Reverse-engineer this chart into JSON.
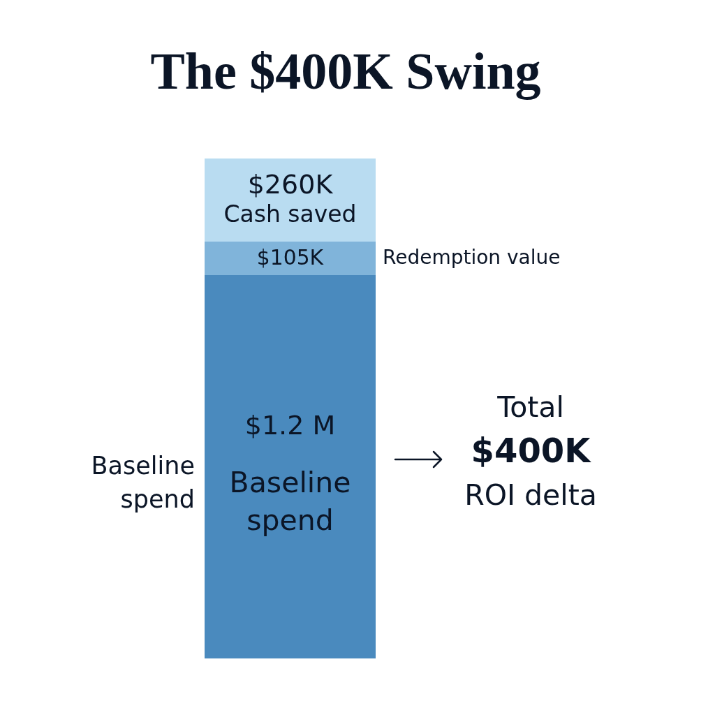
{
  "chart_data": {
    "type": "bar",
    "title": "The $400K Swing",
    "categories": [
      null
    ],
    "stacked": true,
    "tick_labels": false,
    "legend": false,
    "series": [
      {
        "name": "Baseline spend",
        "color": "#4a8abe",
        "values": [
          1200000
        ],
        "value_labels": [
          "$1.2 M"
        ]
      },
      {
        "name": "Redemption value",
        "color": "#80b4da",
        "values": [
          105000
        ],
        "value_labels": [
          "$105K"
        ]
      },
      {
        "name": "Cash saved",
        "color": "#b9dcf1",
        "values": [
          260000
        ],
        "value_labels": [
          "$260K"
        ]
      }
    ],
    "annotations": [
      "Total",
      "$400K",
      "ROI delta"
    ]
  }
}
